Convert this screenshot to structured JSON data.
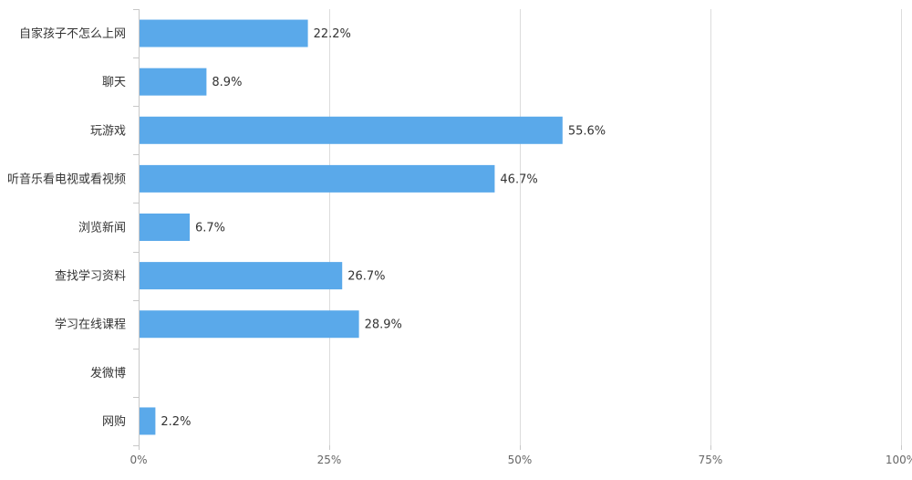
{
  "chart_data": {
    "type": "bar",
    "orientation": "horizontal",
    "categories": [
      "自家孩子不怎么上网",
      "聊天",
      "玩游戏",
      "听音乐看电视或看视频",
      "浏览新闻",
      "查找学习资料",
      "学习在线课程",
      "发微博",
      "网购"
    ],
    "values": [
      22.2,
      8.9,
      55.6,
      46.7,
      6.7,
      26.7,
      28.9,
      0,
      2.2
    ],
    "value_labels": [
      "22.2%",
      "8.9%",
      "55.6%",
      "46.7%",
      "6.7%",
      "26.7%",
      "28.9%",
      "",
      "2.2%"
    ],
    "x_ticks": [
      0,
      25,
      50,
      75,
      100
    ],
    "x_tick_labels": [
      "0%",
      "25%",
      "50%",
      "75%",
      "100%"
    ],
    "xlim": [
      0,
      100
    ],
    "grid": true,
    "bar_color": "#5aa9ea",
    "title": "",
    "xlabel": "",
    "ylabel": ""
  }
}
